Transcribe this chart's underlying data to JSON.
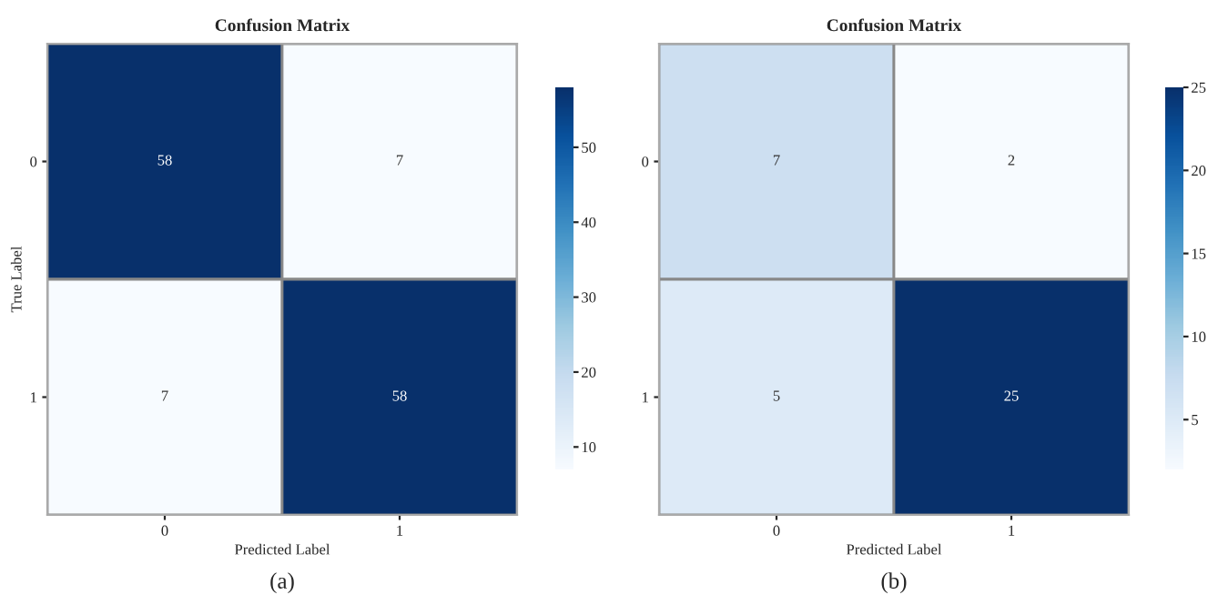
{
  "chart_data": [
    {
      "type": "heatmap",
      "title": "Confusion Matrix",
      "xlabel": "Predicted Label",
      "ylabel": "True Label",
      "categories": [
        "0",
        "1"
      ],
      "y_categories": [
        "0",
        "1"
      ],
      "cells": [
        [
          58,
          7
        ],
        [
          7,
          58
        ]
      ],
      "clim": [
        7,
        58
      ],
      "cticks": [
        10,
        20,
        30,
        40,
        50
      ],
      "data_labels": true,
      "annotations": [
        "(a)"
      ]
    },
    {
      "type": "heatmap",
      "title": "Confusion Matrix",
      "xlabel": "Predicted Label",
      "categories": [
        "0",
        "1"
      ],
      "y_categories": [
        "0",
        "1"
      ],
      "cells": [
        [
          7,
          2
        ],
        [
          5,
          25
        ]
      ],
      "clim": [
        2,
        25
      ],
      "cticks": [
        5,
        10,
        15,
        20,
        25
      ],
      "data_labels": true,
      "annotations": [
        "(b)"
      ]
    }
  ]
}
